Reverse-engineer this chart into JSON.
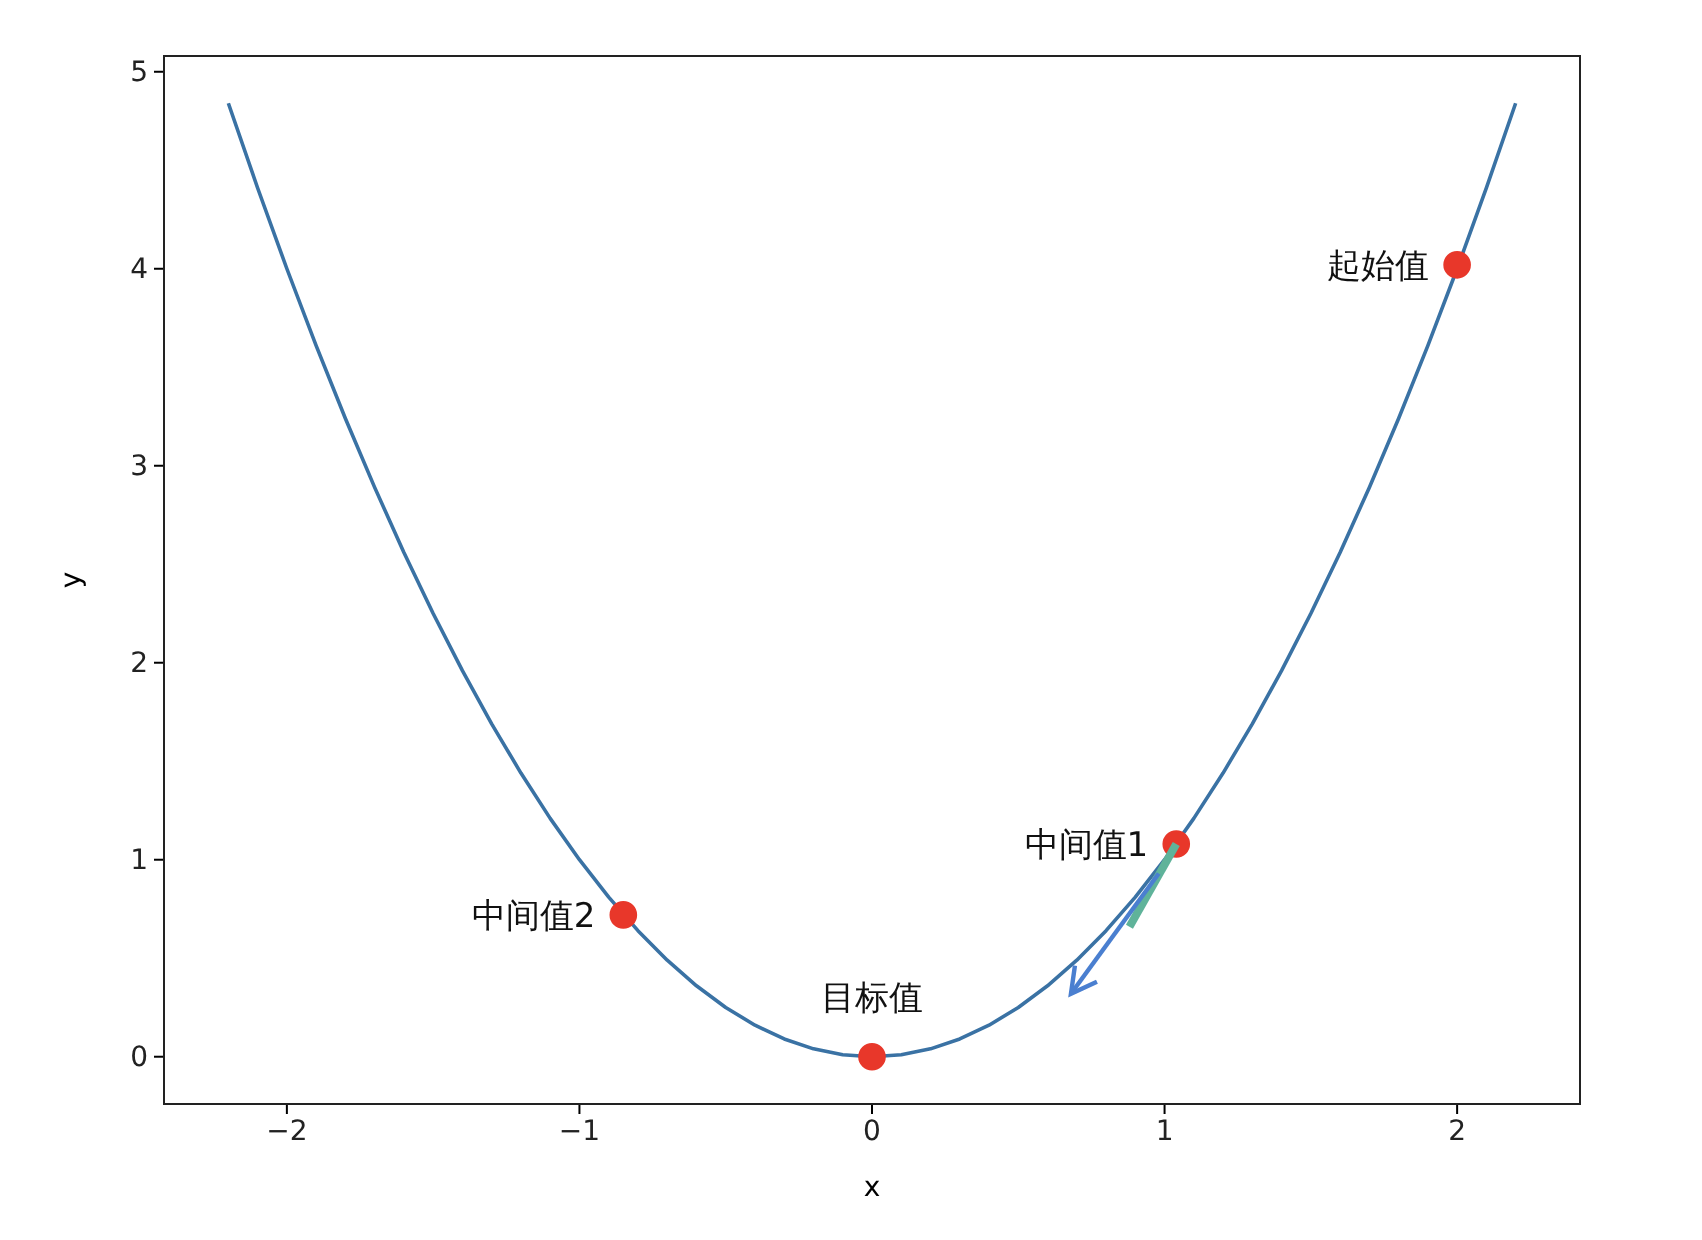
{
  "chart_data": {
    "type": "line",
    "xlabel": "x",
    "ylabel": "y",
    "xlim": [
      -2.42,
      2.42
    ],
    "ylim": [
      -0.24,
      5.08
    ],
    "xticks": [
      {
        "value": -2,
        "label": "−2"
      },
      {
        "value": -1,
        "label": "−1"
      },
      0,
      1,
      2
    ],
    "yticks": [
      0,
      1,
      2,
      3,
      4,
      5
    ],
    "grid": false,
    "series": [
      {
        "color": "#3a72a4",
        "x": [
          -2.2,
          -2.1,
          -2.0,
          -1.9,
          -1.8,
          -1.7,
          -1.6,
          -1.5,
          -1.4,
          -1.3,
          -1.2,
          -1.1,
          -1.0,
          -0.9,
          -0.8,
          -0.7,
          -0.6,
          -0.5,
          -0.4,
          -0.3,
          -0.2,
          -0.1,
          0,
          0.1,
          0.2,
          0.3,
          0.4,
          0.5,
          0.6,
          0.7,
          0.8,
          0.9,
          1.0,
          1.1,
          1.2,
          1.3,
          1.4,
          1.5,
          1.6,
          1.7,
          1.8,
          1.9,
          2.0,
          2.1,
          2.2
        ],
        "values": [
          4.84,
          4.41,
          4.0,
          3.61,
          3.24,
          2.89,
          2.56,
          2.25,
          1.96,
          1.69,
          1.44,
          1.21,
          1.0,
          0.81,
          0.64,
          0.49,
          0.36,
          0.25,
          0.16,
          0.09,
          0.04,
          0.01,
          0,
          0.01,
          0.04,
          0.09,
          0.16,
          0.25,
          0.36,
          0.49,
          0.64,
          0.81,
          1.0,
          1.21,
          1.44,
          1.69,
          1.96,
          2.25,
          2.56,
          2.89,
          3.24,
          3.61,
          4.0,
          4.41,
          4.84
        ]
      },
      {
        "type": "scatter",
        "color": "#e8372a",
        "marker": "circle",
        "x": [
          2,
          1.04,
          -0.85,
          0
        ],
        "values": [
          4.02,
          1.08,
          0.72,
          0
        ]
      }
    ],
    "annotations": [
      {
        "text": "起始值",
        "x": 2,
        "y": 4.02
      },
      {
        "text": "中间值1",
        "x": 1.04,
        "y": 1.08
      },
      {
        "text": "中间值2",
        "x": -0.85,
        "y": 0.72
      },
      {
        "text": "目标值",
        "x": 0,
        "y": 0
      }
    ]
  }
}
